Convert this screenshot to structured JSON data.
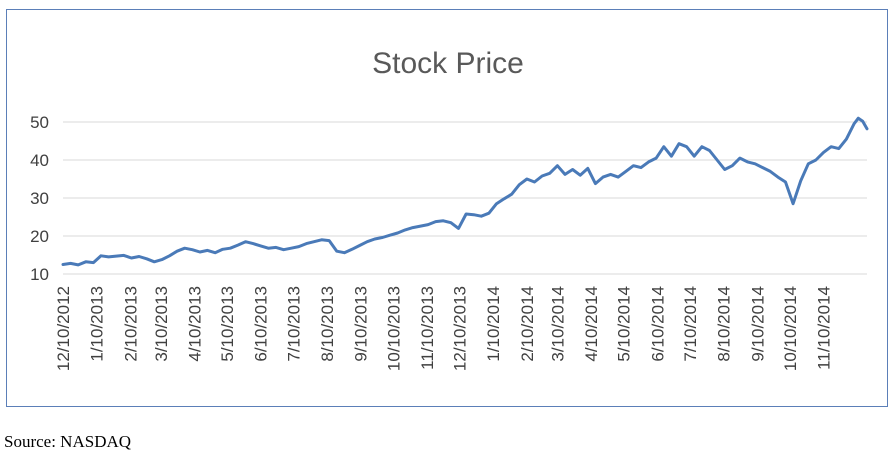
{
  "source_note": "Source: NASDAQ",
  "colors": {
    "line": "#4a7ab8",
    "gridline": "#d9d9d9",
    "border": "#5b7fb8",
    "text": "#404040"
  },
  "chart_data": {
    "type": "line",
    "title": "Stock Price",
    "xlabel": "",
    "ylabel": "",
    "grid": true,
    "legend": "none",
    "ylim": [
      10,
      50
    ],
    "yticks": [
      10,
      20,
      30,
      40,
      50
    ],
    "xlim": [
      "12/10/2012",
      "12/20/2014"
    ],
    "xticks": [
      "12/10/2012",
      "1/10/2013",
      "2/10/2013",
      "3/10/2013",
      "4/10/2013",
      "5/10/2013",
      "6/10/2013",
      "7/10/2013",
      "8/10/2013",
      "9/10/2013",
      "10/10/2013",
      "11/10/2013",
      "12/10/2013",
      "1/10/2014",
      "2/10/2014",
      "3/10/2014",
      "4/10/2014",
      "5/10/2014",
      "6/10/2014",
      "7/10/2014",
      "8/10/2014",
      "9/10/2014",
      "10/10/2014",
      "11/10/2014"
    ],
    "series": [
      {
        "points": [
          [
            "12/10/2012",
            12.5
          ],
          [
            "12/17/2012",
            12.8
          ],
          [
            "12/24/2012",
            12.4
          ],
          [
            "12/31/2012",
            13.2
          ],
          [
            "1/7/2013",
            13.0
          ],
          [
            "1/14/2013",
            14.8
          ],
          [
            "1/21/2013",
            14.5
          ],
          [
            "1/28/2013",
            14.7
          ],
          [
            "2/4/2013",
            14.9
          ],
          [
            "2/11/2013",
            14.2
          ],
          [
            "2/18/2013",
            14.6
          ],
          [
            "2/25/2013",
            14.0
          ],
          [
            "3/4/2013",
            13.2
          ],
          [
            "3/11/2013",
            13.8
          ],
          [
            "3/18/2013",
            14.8
          ],
          [
            "3/25/2013",
            16.0
          ],
          [
            "4/1/2013",
            16.8
          ],
          [
            "4/8/2013",
            16.4
          ],
          [
            "4/15/2013",
            15.8
          ],
          [
            "4/22/2013",
            16.2
          ],
          [
            "4/29/2013",
            15.6
          ],
          [
            "5/6/2013",
            16.5
          ],
          [
            "5/13/2013",
            16.8
          ],
          [
            "5/20/2013",
            17.6
          ],
          [
            "5/27/2013",
            18.5
          ],
          [
            "6/3/2013",
            18.0
          ],
          [
            "6/10/2013",
            17.4
          ],
          [
            "6/17/2013",
            16.8
          ],
          [
            "6/24/2013",
            17.0
          ],
          [
            "7/1/2013",
            16.4
          ],
          [
            "7/8/2013",
            16.8
          ],
          [
            "7/15/2013",
            17.2
          ],
          [
            "7/22/2013",
            18.0
          ],
          [
            "7/29/2013",
            18.5
          ],
          [
            "8/5/2013",
            19.0
          ],
          [
            "8/12/2013",
            18.8
          ],
          [
            "8/19/2013",
            16.0
          ],
          [
            "8/26/2013",
            15.6
          ],
          [
            "9/2/2013",
            16.5
          ],
          [
            "9/9/2013",
            17.5
          ],
          [
            "9/16/2013",
            18.5
          ],
          [
            "9/23/2013",
            19.2
          ],
          [
            "9/30/2013",
            19.6
          ],
          [
            "10/7/2013",
            20.2
          ],
          [
            "10/14/2013",
            20.8
          ],
          [
            "10/21/2013",
            21.6
          ],
          [
            "10/28/2013",
            22.2
          ],
          [
            "11/4/2013",
            22.6
          ],
          [
            "11/11/2013",
            23.0
          ],
          [
            "11/18/2013",
            23.8
          ],
          [
            "11/25/2013",
            24.0
          ],
          [
            "12/2/2013",
            23.5
          ],
          [
            "12/9/2013",
            22.0
          ],
          [
            "12/16/2013",
            25.8
          ],
          [
            "12/23/2013",
            25.6
          ],
          [
            "12/30/2013",
            25.2
          ],
          [
            "1/6/2014",
            26.0
          ],
          [
            "1/13/2014",
            28.5
          ],
          [
            "1/20/2014",
            29.8
          ],
          [
            "1/27/2014",
            31.0
          ],
          [
            "2/3/2014",
            33.5
          ],
          [
            "2/10/2014",
            35.0
          ],
          [
            "2/17/2014",
            34.2
          ],
          [
            "2/24/2014",
            35.8
          ],
          [
            "3/3/2014",
            36.5
          ],
          [
            "3/10/2014",
            38.5
          ],
          [
            "3/17/2014",
            36.2
          ],
          [
            "3/24/2014",
            37.5
          ],
          [
            "3/31/2014",
            36.0
          ],
          [
            "4/7/2014",
            37.8
          ],
          [
            "4/14/2014",
            33.8
          ],
          [
            "4/21/2014",
            35.5
          ],
          [
            "4/28/2014",
            36.2
          ],
          [
            "5/5/2014",
            35.5
          ],
          [
            "5/12/2014",
            37.0
          ],
          [
            "5/19/2014",
            38.5
          ],
          [
            "5/26/2014",
            38.0
          ],
          [
            "6/2/2014",
            39.5
          ],
          [
            "6/9/2014",
            40.5
          ],
          [
            "6/16/2014",
            43.5
          ],
          [
            "6/23/2014",
            41.0
          ],
          [
            "6/30/2014",
            44.3
          ],
          [
            "7/7/2014",
            43.5
          ],
          [
            "7/14/2014",
            41.0
          ],
          [
            "7/21/2014",
            43.5
          ],
          [
            "7/28/2014",
            42.5
          ],
          [
            "8/4/2014",
            40.0
          ],
          [
            "8/11/2014",
            37.5
          ],
          [
            "8/18/2014",
            38.5
          ],
          [
            "8/25/2014",
            40.5
          ],
          [
            "9/1/2014",
            39.5
          ],
          [
            "9/8/2014",
            39.0
          ],
          [
            "9/15/2014",
            38.0
          ],
          [
            "9/22/2014",
            37.0
          ],
          [
            "9/29/2014",
            35.5
          ],
          [
            "10/6/2014",
            34.2
          ],
          [
            "10/13/2014",
            28.5
          ],
          [
            "10/20/2014",
            34.5
          ],
          [
            "10/27/2014",
            39.0
          ],
          [
            "11/3/2014",
            40.0
          ],
          [
            "11/10/2014",
            42.0
          ],
          [
            "11/17/2014",
            43.5
          ],
          [
            "11/24/2014",
            43.0
          ],
          [
            "12/1/2014",
            45.5
          ],
          [
            "12/8/2014",
            49.5
          ],
          [
            "12/12/2014",
            51.0
          ],
          [
            "12/16/2014",
            50.2
          ],
          [
            "12/20/2014",
            48.2
          ]
        ]
      }
    ]
  }
}
